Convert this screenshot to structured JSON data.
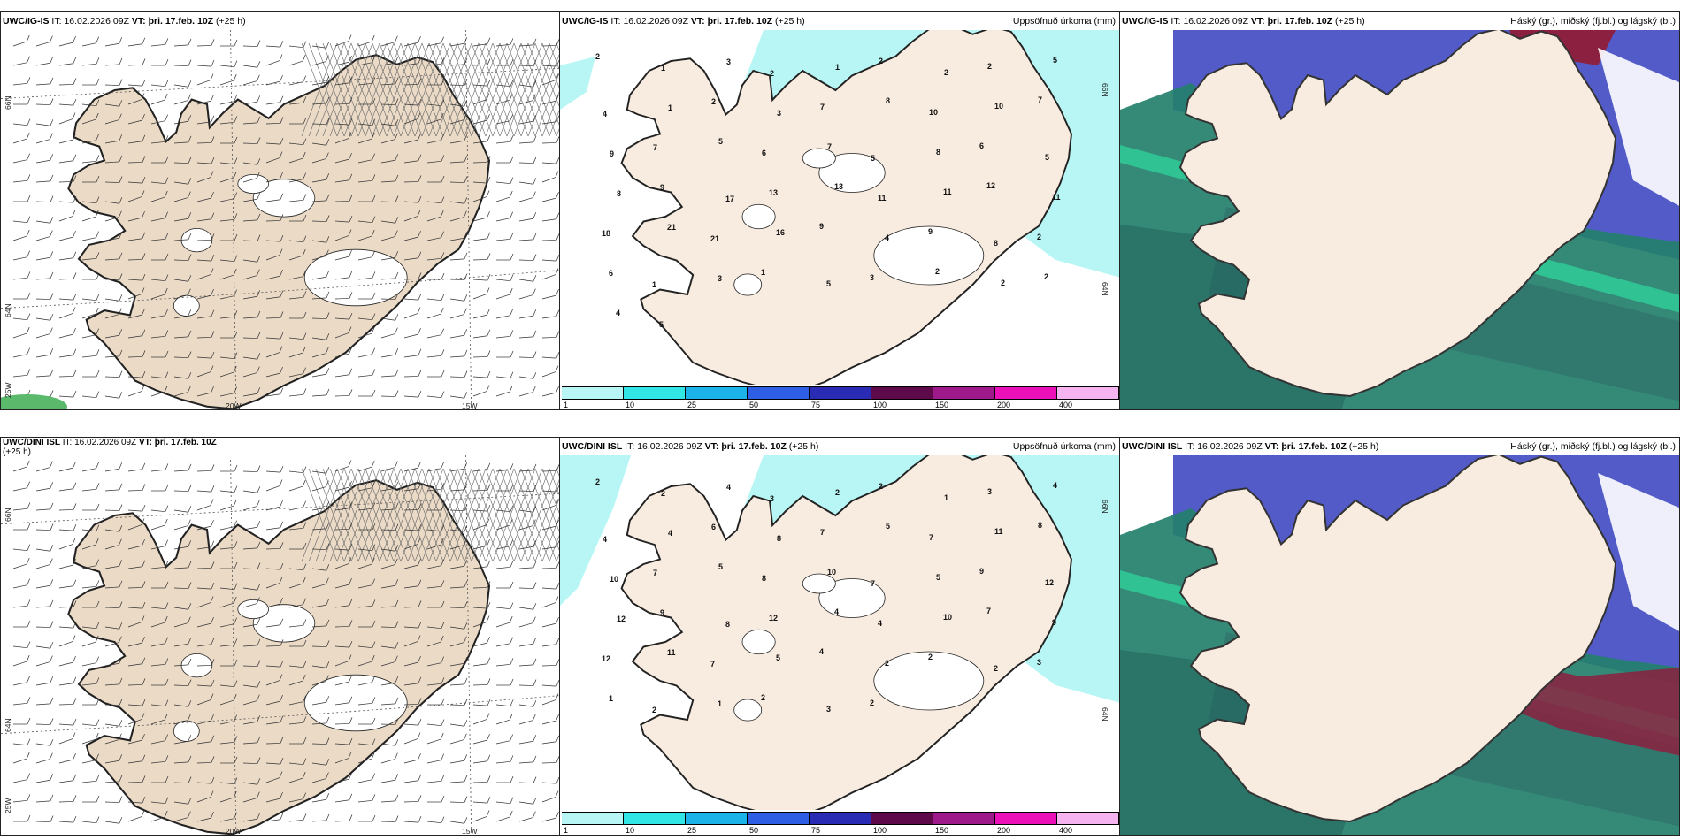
{
  "colors": {
    "land": "#eadac6",
    "landLight": "#f8ebdf",
    "snow": "#ffffff",
    "precipLight": "#b8f6f6",
    "precipMed": "#39e2e2",
    "cloudHigh": "#24806b",
    "cloudMid": "#3f49c2",
    "cloudLow": "#6d74d6",
    "cloudRed": "#8c2040"
  },
  "panels": [
    {
      "model": "UWC/IG-IS",
      "it_label": "IT:",
      "it": "16.02.2026 09Z",
      "vt_label": "VT: þri. 17.feb. 10Z",
      "lead": "(+25 h)",
      "right": ""
    },
    {
      "model": "UWC/IG-IS",
      "it_label": "IT:",
      "it": "16.02.2026 09Z",
      "vt_label": "VT: þri. 17.feb. 10Z",
      "lead": "(+25 h)",
      "right": "Uppsöfnuð úrkoma (mm)"
    },
    {
      "model": "UWC/IG-IS",
      "it_label": "IT:",
      "it": "16.02.2026 09Z",
      "vt_label": "VT: þri. 17.feb. 10Z",
      "lead": "(+25 h)",
      "right": "Háský (gr.), miðský (fj.bl.) og lágský (bl.)"
    },
    {
      "model": "UWC/DINI ISL",
      "it_label": "IT:",
      "it": "16.02.2026 09Z",
      "vt_label": "VT: þri. 17.feb. 10Z",
      "lead": "(+25 h)",
      "right": ""
    },
    {
      "model": "UWC/DINI ISL",
      "it_label": "IT:",
      "it": "16.02.2026 09Z",
      "vt_label": "VT: þri. 17.feb. 10Z",
      "lead": "(+25 h)",
      "right": "Uppsöfnuð úrkoma (mm)"
    },
    {
      "model": "UWC/DINI ISL",
      "it_label": "IT:",
      "it": "16.02.2026 09Z",
      "vt_label": "VT: þri. 17.feb. 10Z",
      "lead": "(+25 h)",
      "right": "Háský (gr.), miðský (fj.bl.) og lágský (bl.)"
    }
  ],
  "grid": {
    "lat_top": "66N",
    "lat_bottom": "64N",
    "lat_left_bottom": "25W",
    "lon_a": "20W",
    "lon_b": "15W"
  },
  "colorbar": {
    "ticks": [
      "1",
      "10",
      "25",
      "50",
      "75",
      "100",
      "150",
      "200",
      "400"
    ],
    "colors": [
      "#b8f6f6",
      "#33e6e6",
      "#1cb3e8",
      "#2d5ee3",
      "#2a2bb4",
      "#5e0a4a",
      "#9e1a8a",
      "#ec10b8",
      "#f5b3f0"
    ]
  },
  "precip_numbers": {
    "top": [
      "2",
      "1",
      "3",
      "2",
      "1",
      "2",
      "2",
      "2",
      "5",
      "4",
      "1",
      "2",
      "3",
      "7",
      "8",
      "10",
      "10",
      "7",
      "9",
      "7",
      "5",
      "6",
      "7",
      "5",
      "8",
      "6",
      "5",
      "8",
      "9",
      "17",
      "13",
      "13",
      "11",
      "11",
      "12",
      "11",
      "18",
      "21",
      "21",
      "16",
      "9",
      "4",
      "9",
      "8",
      "2",
      "6",
      "1",
      "3",
      "1",
      "5",
      "3",
      "2",
      "2",
      "2",
      "4",
      "5"
    ],
    "bottom": [
      "2",
      "2",
      "4",
      "3",
      "2",
      "2",
      "1",
      "3",
      "4",
      "4",
      "4",
      "6",
      "8",
      "7",
      "5",
      "7",
      "11",
      "8",
      "10",
      "7",
      "5",
      "8",
      "10",
      "7",
      "5",
      "9",
      "12",
      "12",
      "9",
      "8",
      "12",
      "4",
      "4",
      "10",
      "7",
      "9",
      "12",
      "11",
      "7",
      "5",
      "4",
      "2",
      "2",
      "2",
      "3",
      "1",
      "2",
      "1",
      "2",
      "3",
      "2"
    ]
  }
}
